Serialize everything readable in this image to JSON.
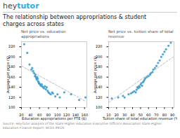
{
  "title": [
    "The relationship between appropriations & student",
    "charges across states"
  ],
  "annotations": [
    {
      "text": "hey",
      "color": "#444444"
    },
    {
      "text": "tutor",
      "color": "#29ABE2"
    }
  ],
  "source": {
    "text": "Source: HeyTutor analysis of the State Higher Education Executive Officers Association State Higher Education Finance Report; NCES IPEDS",
    "color": "#888888"
  },
  "chart_data": [
    {
      "type": "scatter",
      "title": "Net price vs. education appropriations",
      "x_label": "Education appropriations per FTE ($)",
      "y_label": "Average net price ($)",
      "xlim": [
        20,
        165
      ],
      "ylim": [
        100,
        230
      ],
      "xticks": [
        20,
        40,
        60,
        80,
        100,
        120,
        140,
        160
      ],
      "yticks": [
        100,
        120,
        140,
        160,
        180,
        200,
        220
      ],
      "series": [
        {
          "type": "scatter",
          "color": "#3399CC",
          "x": [
            26,
            33,
            38,
            42,
            44,
            46,
            48,
            50,
            51,
            52,
            53,
            54,
            55,
            56,
            57,
            58,
            59,
            60,
            62,
            63,
            65,
            66,
            68,
            70,
            72,
            74,
            76,
            78,
            80,
            82,
            85,
            88,
            90,
            95,
            100,
            105,
            115,
            130,
            148,
            162
          ],
          "values": [
            225,
            208,
            185,
            175,
            178,
            172,
            168,
            162,
            165,
            160,
            158,
            155,
            160,
            157,
            152,
            150,
            148,
            147,
            145,
            143,
            146,
            142,
            140,
            138,
            142,
            136,
            140,
            133,
            130,
            128,
            126,
            130,
            128,
            122,
            126,
            120,
            130,
            126,
            115,
            120
          ]
        },
        {
          "type": "line",
          "line_style": "dashed",
          "color": "#aaaaaa",
          "x": [
            20,
            163
          ],
          "values": [
            182,
            112
          ]
        }
      ]
    },
    {
      "type": "scatter",
      "title": "Net price vs. tuition share of total revenue",
      "x_label": "Tuition share of total education revenue (%)",
      "y_label": "Average net price ($)",
      "xlim": [
        10,
        92
      ],
      "ylim": [
        100,
        230
      ],
      "xticks": [
        10,
        20,
        30,
        40,
        50,
        60,
        70,
        80,
        90
      ],
      "yticks": [
        100,
        120,
        140,
        160,
        180,
        200,
        220
      ],
      "series": [
        {
          "type": "scatter",
          "color": "#3399CC",
          "x": [
            14,
            22,
            28,
            30,
            35,
            38,
            40,
            42,
            44,
            45,
            46,
            47,
            48,
            49,
            50,
            51,
            52,
            53,
            54,
            55,
            56,
            58,
            60,
            62,
            63,
            65,
            66,
            68,
            70,
            72,
            74,
            76,
            78,
            80,
            82,
            85,
            88
          ],
          "values": [
            118,
            120,
            123,
            120,
            126,
            128,
            130,
            132,
            130,
            135,
            140,
            138,
            142,
            140,
            145,
            148,
            143,
            150,
            152,
            155,
            158,
            160,
            162,
            165,
            168,
            170,
            175,
            178,
            182,
            188,
            193,
            200,
            205,
            210,
            215,
            222,
            228
          ]
        },
        {
          "type": "line",
          "line_style": "dashed",
          "color": "#aaaaaa",
          "x": [
            10,
            91
          ],
          "values": [
            110,
            200
          ]
        }
      ]
    }
  ]
}
